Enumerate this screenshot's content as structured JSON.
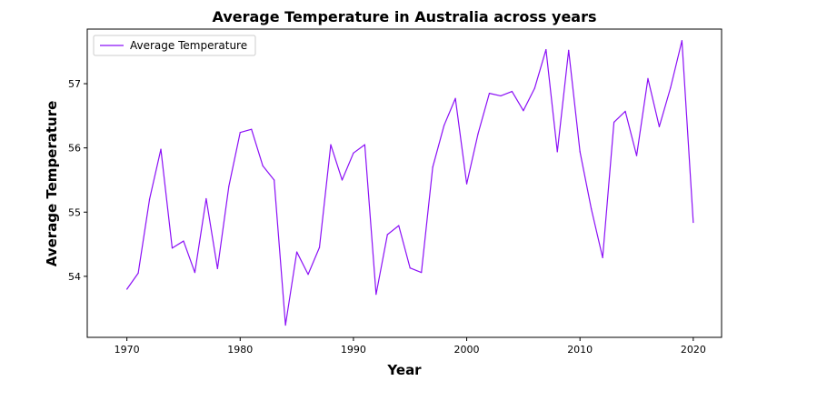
{
  "chart_data": {
    "type": "line",
    "title": "Average Temperature in Australia across years",
    "xlabel": "Year",
    "ylabel": "Average Temperature",
    "xlim": [
      1966.5,
      2022.5
    ],
    "ylim": [
      53.05,
      57.85
    ],
    "xticks": [
      1970,
      1980,
      1990,
      2000,
      2010,
      2020
    ],
    "yticks": [
      54,
      55,
      56,
      57
    ],
    "grid": false,
    "legend": "top-left",
    "series": [
      {
        "name": "Average Temperature",
        "color": "#8b10f6",
        "x": [
          1970,
          1971,
          1972,
          1973,
          1974,
          1975,
          1976,
          1977,
          1978,
          1979,
          1980,
          1981,
          1982,
          1983,
          1984,
          1985,
          1986,
          1987,
          1988,
          1989,
          1990,
          1991,
          1992,
          1993,
          1994,
          1995,
          1996,
          1997,
          1998,
          1999,
          2000,
          2001,
          2002,
          2003,
          2004,
          2005,
          2006,
          2007,
          2008,
          2009,
          2010,
          2011,
          2012,
          2013,
          2014,
          2015,
          2016,
          2017,
          2018,
          2019,
          2020
        ],
        "y": [
          53.8,
          54.05,
          55.2,
          55.98,
          54.44,
          54.55,
          54.06,
          55.21,
          54.12,
          55.4,
          56.24,
          56.29,
          55.72,
          55.5,
          53.24,
          54.38,
          54.03,
          54.45,
          56.05,
          55.5,
          55.92,
          56.05,
          53.72,
          54.65,
          54.79,
          54.13,
          54.06,
          55.7,
          56.35,
          56.77,
          55.44,
          56.22,
          56.85,
          56.81,
          56.88,
          56.58,
          56.93,
          57.53,
          55.94,
          57.52,
          55.94,
          55.05,
          54.29,
          56.4,
          56.57,
          55.88,
          57.08,
          56.33,
          56.94,
          57.67,
          54.84
        ]
      }
    ]
  }
}
